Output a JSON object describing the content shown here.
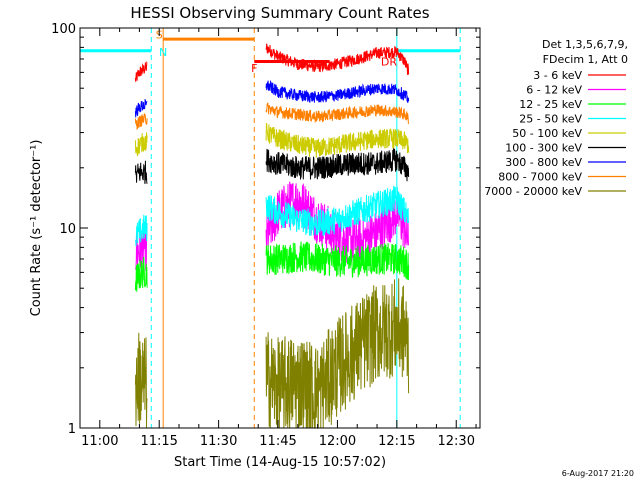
{
  "chart_data": {
    "type": "line",
    "title": "HESSI Observing Summary Count Rates",
    "xlabel": "Start Time (14-Aug-15 10:57:02)",
    "ylabel": "Count Rate (s⁻¹ detector⁻¹)",
    "y_scale": "log",
    "ylim": [
      1,
      100
    ],
    "x_unit": "HH:MM UT on 14-Aug-2015",
    "xlim": [
      "10:55",
      "12:36"
    ],
    "x_ticks": [
      "11:00",
      "11:15",
      "11:30",
      "11:45",
      "12:00",
      "12:15",
      "12:30"
    ],
    "y_ticks": [
      {
        "value": 1,
        "label": "1"
      },
      {
        "value": 10,
        "label": "10"
      },
      {
        "value": 100,
        "label": "100"
      }
    ],
    "legend": {
      "placement": "outside-right",
      "header": [
        "Det 1,3,5,6,7,9,",
        "FDecim 1, Att 0"
      ]
    },
    "footer": "6-Aug-2017 21:20",
    "series": [
      {
        "name": "3 - 6 keV",
        "color": "#ff0000",
        "noise": 0.03,
        "segments": [
          {
            "x": [
              "11:09",
              "11:10",
              "11:11",
              "11:12"
            ],
            "y": [
              55,
              60,
              62,
              64
            ]
          },
          {
            "x": [
              "11:42",
              "11:45",
              "11:50",
              "11:55",
              "12:00",
              "12:05",
              "12:10",
              "12:15",
              "12:17",
              "12:18"
            ],
            "y": [
              80,
              72,
              66,
              64,
              66,
              70,
              75,
              76,
              68,
              60
            ]
          }
        ]
      },
      {
        "name": "6 - 12 keV",
        "color": "#ff00ff",
        "noise": 0.12,
        "segments": [
          {
            "x": [
              "11:09",
              "11:10",
              "11:11",
              "11:12"
            ],
            "y": [
              7.5,
              7.8,
              8,
              8
            ]
          },
          {
            "x": [
              "11:42",
              "11:45",
              "11:50",
              "11:55",
              "12:00",
              "12:05",
              "12:10",
              "12:15",
              "12:17",
              "12:18"
            ],
            "y": [
              9,
              12,
              14,
              11,
              9,
              8.5,
              9.5,
              12,
              10,
              8.5
            ]
          }
        ]
      },
      {
        "name": "12 - 25 keV",
        "color": "#00ff00",
        "noise": 0.08,
        "segments": [
          {
            "x": [
              "11:09",
              "11:10",
              "11:11",
              "11:12"
            ],
            "y": [
              5.5,
              5.8,
              6,
              6
            ]
          },
          {
            "x": [
              "11:42",
              "11:45",
              "11:50",
              "11:55",
              "12:00",
              "12:05",
              "12:10",
              "12:15",
              "12:17",
              "12:18"
            ],
            "y": [
              7,
              7,
              7.2,
              7,
              6.8,
              6.8,
              7,
              7,
              6.8,
              6.5
            ]
          }
        ]
      },
      {
        "name": "25 - 50 keV",
        "color": "#00ffff",
        "noise": 0.07,
        "segments": [
          {
            "x": [
              "11:09",
              "11:10",
              "11:11",
              "11:12"
            ],
            "y": [
              9,
              9.5,
              10,
              10
            ]
          },
          {
            "x": [
              "11:42",
              "11:45",
              "11:50",
              "11:55",
              "12:00",
              "12:05",
              "12:10",
              "12:15",
              "12:17",
              "12:18"
            ],
            "y": [
              13,
              12,
              11,
              10.5,
              11,
              12,
              13,
              14,
              12,
              11
            ]
          }
        ]
      },
      {
        "name": "50 - 100 keV",
        "color": "#cccc00",
        "noise": 0.05,
        "segments": [
          {
            "x": [
              "11:09",
              "11:10",
              "11:11",
              "11:12"
            ],
            "y": [
              25,
              26,
              27,
              27
            ]
          },
          {
            "x": [
              "11:42",
              "11:45",
              "11:50",
              "11:55",
              "12:00",
              "12:05",
              "12:10",
              "12:15",
              "12:17",
              "12:18"
            ],
            "y": [
              30,
              28,
              26,
              25,
              26,
              27,
              28,
              28,
              27,
              26
            ]
          }
        ]
      },
      {
        "name": "100 - 300 keV",
        "color": "#000000",
        "noise": 0.06,
        "segments": [
          {
            "x": [
              "11:09",
              "11:10",
              "11:11",
              "11:12"
            ],
            "y": [
              18,
              19,
              19,
              19
            ]
          },
          {
            "x": [
              "11:42",
              "11:45",
              "11:50",
              "11:55",
              "12:00",
              "12:05",
              "12:10",
              "12:15",
              "12:17",
              "12:18"
            ],
            "y": [
              22,
              21,
              20,
              20,
              20.5,
              21,
              21,
              22,
              20,
              19
            ]
          }
        ]
      },
      {
        "name": "300 - 800 keV",
        "color": "#0000ff",
        "noise": 0.03,
        "segments": [
          {
            "x": [
              "11:09",
              "11:10",
              "11:11",
              "11:12"
            ],
            "y": [
              38,
              40,
              41,
              41
            ]
          },
          {
            "x": [
              "11:42",
              "11:45",
              "11:50",
              "11:55",
              "12:00",
              "12:05",
              "12:10",
              "12:15",
              "12:17",
              "12:18"
            ],
            "y": [
              52,
              48,
              46,
              45,
              46,
              48,
              50,
              49,
              46,
              44
            ]
          }
        ]
      },
      {
        "name": "800 - 7000 keV",
        "color": "#ff8000",
        "noise": 0.03,
        "segments": [
          {
            "x": [
              "11:09",
              "11:10",
              "11:11",
              "11:12"
            ],
            "y": [
              33,
              34,
              35,
              35
            ]
          },
          {
            "x": [
              "11:42",
              "11:45",
              "11:50",
              "11:55",
              "12:00",
              "12:05",
              "12:10",
              "12:15",
              "12:17",
              "12:18"
            ],
            "y": [
              40,
              38,
              37,
              36,
              37,
              38,
              39,
              38,
              37,
              35
            ]
          }
        ]
      },
      {
        "name": "7000 - 20000 keV",
        "color": "#808000",
        "noise": 0.25,
        "segments": [
          {
            "x": [
              "11:09",
              "11:10",
              "11:11",
              "11:12"
            ],
            "y": [
              1.6,
              1.8,
              1.7,
              1.6
            ]
          },
          {
            "x": [
              "11:42",
              "11:45",
              "11:50",
              "11:55",
              "12:00",
              "12:05",
              "12:10",
              "12:15",
              "12:17",
              "12:18"
            ],
            "y": [
              1.8,
              1.6,
              1.7,
              1.5,
              2,
              2.5,
              3,
              3.2,
              3,
              2.5
            ]
          }
        ]
      }
    ],
    "overlays": [
      {
        "kind": "flag-bar",
        "color": "#00ffff",
        "x": [
          "10:55",
          "11:13"
        ],
        "y": 77
      },
      {
        "kind": "flag-bar",
        "color": "#00ffff",
        "x": [
          "12:15",
          "12:31"
        ],
        "y": 77
      },
      {
        "kind": "flag-bar",
        "color": "#ff8000",
        "x": [
          "11:16",
          "11:39"
        ],
        "y": 88
      },
      {
        "kind": "flag-bar",
        "color": "#ff0000",
        "x": [
          "11:39",
          "11:58"
        ],
        "y": 68
      },
      {
        "kind": "vline",
        "color": "#00ffff",
        "x": "10:55",
        "dashed": false
      },
      {
        "kind": "vline",
        "color": "#00ffff",
        "x": "11:13",
        "dashed": true
      },
      {
        "kind": "vline",
        "color": "#ff8000",
        "x": "11:16",
        "dashed": false
      },
      {
        "kind": "vline",
        "color": "#ff8000",
        "x": "11:39",
        "dashed": true
      },
      {
        "kind": "vline",
        "color": "#00ffff",
        "x": "12:15",
        "dashed": false
      },
      {
        "kind": "vline",
        "color": "#00ffff",
        "x": "12:31",
        "dashed": true
      }
    ],
    "flag_labels": [
      {
        "text": "S",
        "color": "#ff8000",
        "x": "11:15",
        "y": 93
      },
      {
        "text": "N",
        "color": "#00ffff",
        "x": "11:16",
        "y": 76
      },
      {
        "text": "F",
        "color": "#ff0000",
        "x": "11:39",
        "y": 63
      },
      {
        "text": "DR",
        "color": "#ff0000",
        "x": "12:13",
        "y": 68
      }
    ]
  }
}
